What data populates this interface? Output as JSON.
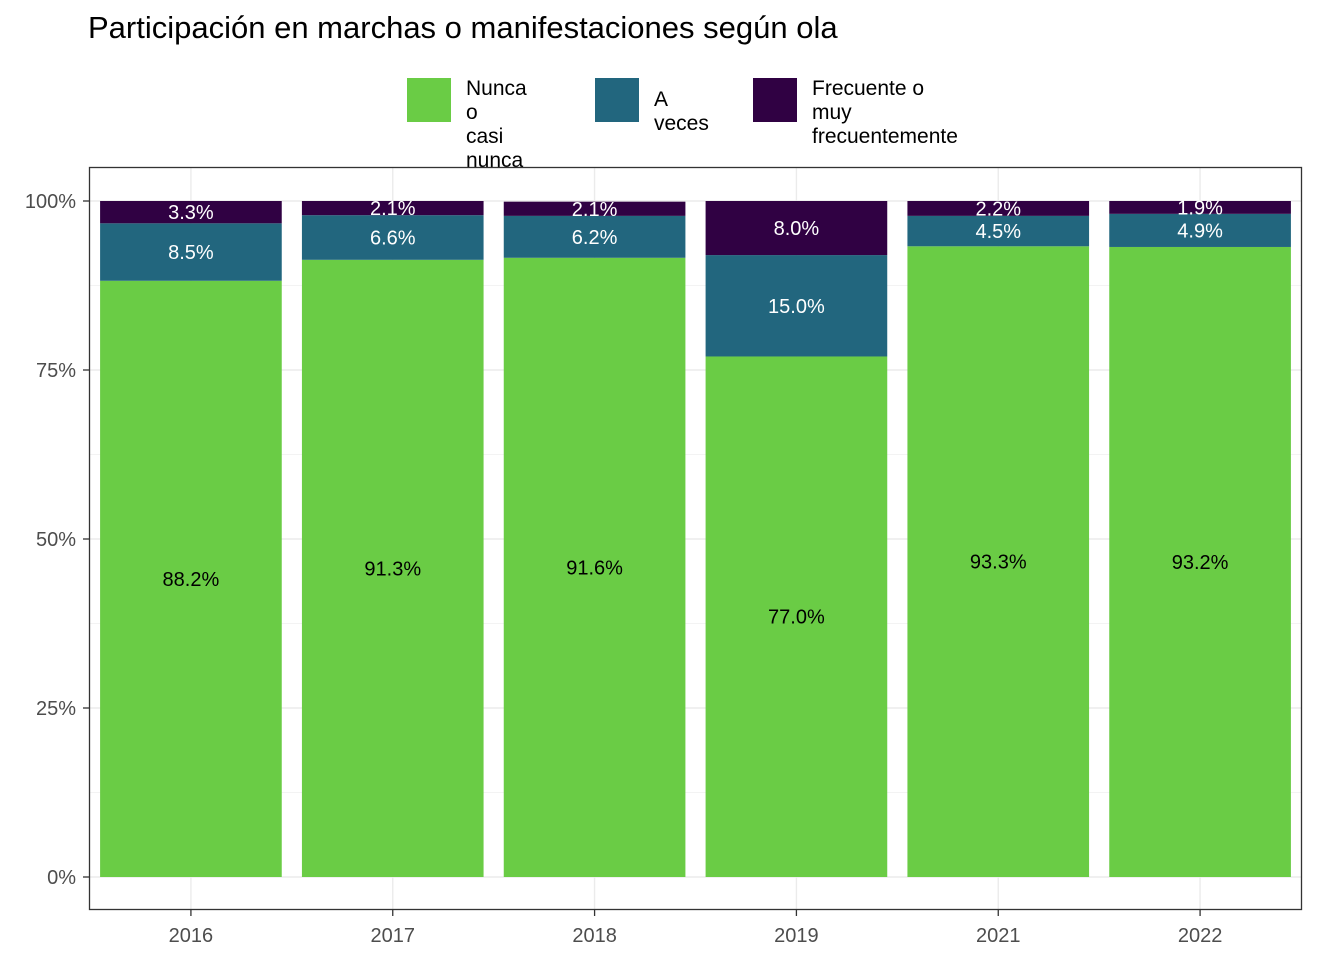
{
  "chart_data": {
    "type": "bar",
    "stacked": true,
    "title": "Participación en marchas o manifestaciones según ola",
    "xlabel": "",
    "ylabel": "",
    "categories": [
      "2016",
      "2017",
      "2018",
      "2019",
      "2021",
      "2022"
    ],
    "y_ticks": [
      "0%",
      "25%",
      "50%",
      "75%",
      "100%"
    ],
    "ylim": [
      0,
      100
    ],
    "legend_position": "top",
    "series": [
      {
        "name": "Nunca o\ncasi nunca",
        "color": "#6ACC45",
        "label_color": "#000000",
        "values": [
          88.2,
          91.3,
          91.6,
          77.0,
          93.3,
          93.2
        ],
        "labels": [
          "88.2%",
          "91.3%",
          "91.6%",
          "77.0%",
          "93.3%",
          "93.2%"
        ]
      },
      {
        "name": "A veces",
        "color": "#22667E",
        "label_color": "#FFFFFF",
        "values": [
          8.5,
          6.6,
          6.2,
          15.0,
          4.5,
          4.9
        ],
        "labels": [
          "8.5%",
          "6.6%",
          "6.2%",
          "15.0%",
          "4.5%",
          "4.9%"
        ]
      },
      {
        "name": "Frecuente o\nmuy frecuentemente",
        "color": "#300143",
        "label_color": "#FFFFFF",
        "values": [
          3.3,
          2.1,
          2.1,
          8.0,
          2.2,
          1.9
        ],
        "labels": [
          "3.3%",
          "2.1%",
          "2.1%",
          "8.0%",
          "2.2%",
          "1.9%"
        ]
      }
    ]
  }
}
